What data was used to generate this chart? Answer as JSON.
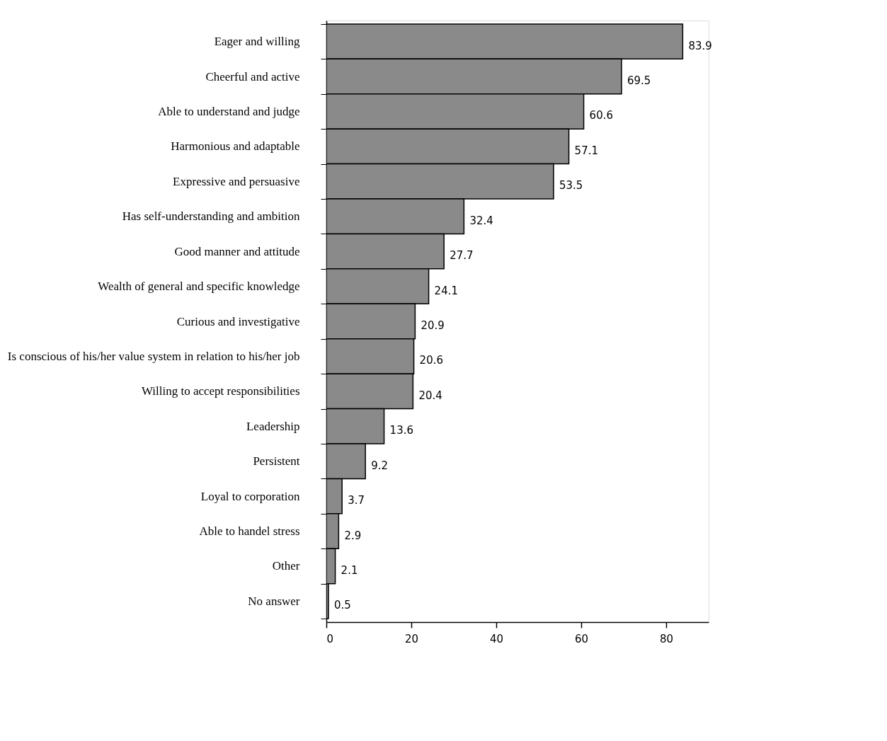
{
  "chart_data": {
    "type": "bar",
    "orientation": "horizontal",
    "categories": [
      "Eager and willing",
      "Cheerful and active",
      "Able to understand and judge",
      "Harmonious and adaptable",
      "Expressive and persuasive",
      "Has self-understanding and ambition",
      "Good manner and attitude",
      "Wealth of general and specific knowledge",
      "Curious and investigative",
      "Is conscious of his/her value system in relation to his/her job",
      "Willing to accept responsibilities",
      "Leadership",
      "Persistent",
      "Loyal to corporation",
      "Able to handel stress",
      "Other",
      "No answer"
    ],
    "values": [
      83.9,
      69.5,
      60.6,
      57.1,
      53.5,
      32.4,
      27.7,
      24.1,
      20.9,
      20.6,
      20.4,
      13.6,
      9.2,
      3.7,
      2.9,
      2.1,
      0.5
    ],
    "color": "#8a8a8a",
    "xlim": [
      0,
      90
    ],
    "xticks": [
      0,
      20,
      40,
      60,
      80
    ],
    "data_labels": true,
    "grid": false
  }
}
